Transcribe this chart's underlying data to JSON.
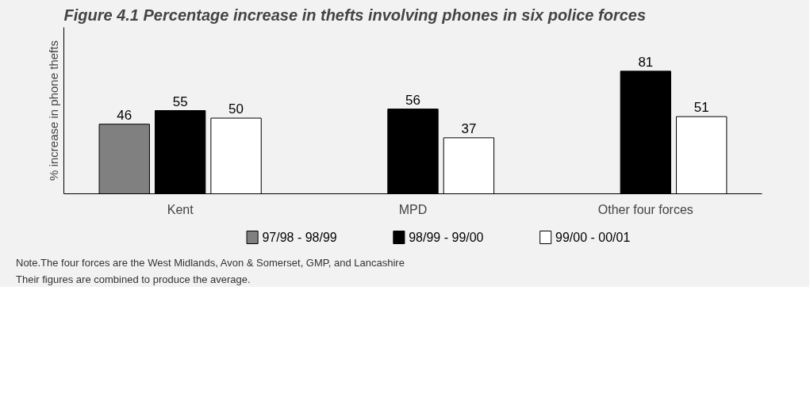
{
  "chart_data": {
    "type": "bar",
    "title": "Figure 4.1      Percentage increase in thefts involving phones in six police forces",
    "ylabel": "% increase in phone thefts",
    "categories": [
      "Kent",
      "MPD",
      "Other four forces"
    ],
    "series": [
      {
        "name": "97/98 - 98/99",
        "color": "#808080",
        "values": [
          46,
          null,
          null
        ]
      },
      {
        "name": "98/99 - 99/00",
        "color": "#000000",
        "values": [
          55,
          56,
          81
        ]
      },
      {
        "name": "99/00 - 00/01",
        "color": "#ffffff",
        "values": [
          50,
          37,
          51
        ]
      }
    ],
    "ylim": [
      0,
      110
    ],
    "data_labels": true,
    "legend": "bottom",
    "grid": false,
    "annotations": [
      "Note.The four forces are the West Midlands, Avon & Somerset, GMP, and Lancashire",
      "Their figures are combined to produce the average."
    ]
  }
}
